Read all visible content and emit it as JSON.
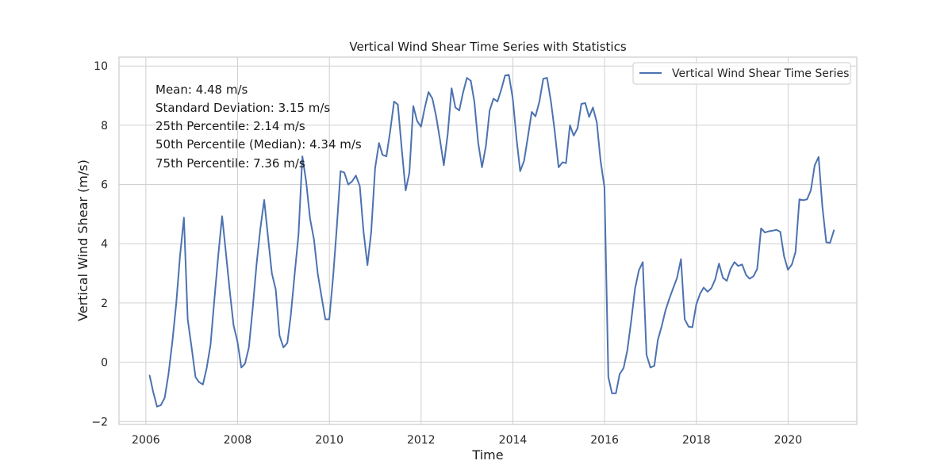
{
  "chart_data": {
    "type": "line",
    "title": "Vertical Wind Shear Time Series with Statistics",
    "xlabel": "Time",
    "ylabel": "Vertical Wind Shear (m/s)",
    "xlim": [
      "2005-06-01",
      "2021-07-01"
    ],
    "ylim": [
      -2.1,
      10.3
    ],
    "x_ticks": [
      "2006",
      "2008",
      "2010",
      "2012",
      "2014",
      "2016",
      "2018",
      "2020"
    ],
    "y_ticks": [
      -2,
      0,
      2,
      4,
      6,
      8,
      10
    ],
    "grid": true,
    "legend_position": "top-right",
    "colors": {
      "series": "#4c72b0",
      "grid": "#d0d0d0",
      "frame": "#cccccc"
    },
    "annotations": [
      "Mean: 4.48 m/s",
      "Standard Deviation: 3.15 m/s",
      "25th Percentile: 2.14 m/s",
      "50th Percentile (Median): 4.34 m/s",
      "75th Percentile: 7.36 m/s"
    ],
    "series": [
      {
        "name": "Vertical Wind Shear Time Series",
        "x": [
          "2006-01-31",
          "2006-02-28",
          "2006-03-31",
          "2006-04-30",
          "2006-05-31",
          "2006-06-30",
          "2006-07-31",
          "2006-08-31",
          "2006-09-30",
          "2006-10-31",
          "2006-11-30",
          "2006-12-31",
          "2007-01-31",
          "2007-02-28",
          "2007-03-31",
          "2007-04-30",
          "2007-05-31",
          "2007-06-30",
          "2007-07-31",
          "2007-08-31",
          "2007-09-30",
          "2007-10-31",
          "2007-11-30",
          "2007-12-31",
          "2008-01-31",
          "2008-02-29",
          "2008-03-31",
          "2008-04-30",
          "2008-05-31",
          "2008-06-30",
          "2008-07-31",
          "2008-08-31",
          "2008-09-30",
          "2008-10-31",
          "2008-11-30",
          "2008-12-31",
          "2009-01-31",
          "2009-02-28",
          "2009-03-31",
          "2009-04-30",
          "2009-05-31",
          "2009-06-30",
          "2009-07-31",
          "2009-08-31",
          "2009-09-30",
          "2009-10-31",
          "2009-11-30",
          "2009-12-31",
          "2010-01-31",
          "2010-02-28",
          "2010-03-31",
          "2010-04-30",
          "2010-05-31",
          "2010-06-30",
          "2010-07-31",
          "2010-08-31",
          "2010-09-30",
          "2010-10-31",
          "2010-11-30",
          "2010-12-31",
          "2011-01-31",
          "2011-02-28",
          "2011-03-31",
          "2011-04-30",
          "2011-05-31",
          "2011-06-30",
          "2011-07-31",
          "2011-08-31",
          "2011-09-30",
          "2011-10-31",
          "2011-11-30",
          "2011-12-31",
          "2012-01-31",
          "2012-02-29",
          "2012-03-31",
          "2012-04-30",
          "2012-05-31",
          "2012-06-30",
          "2012-07-31",
          "2012-08-31",
          "2012-09-30",
          "2012-10-31",
          "2012-11-30",
          "2012-12-31",
          "2013-01-31",
          "2013-02-28",
          "2013-03-31",
          "2013-04-30",
          "2013-05-31",
          "2013-06-30",
          "2013-07-31",
          "2013-08-31",
          "2013-09-30",
          "2013-10-31",
          "2013-11-30",
          "2013-12-31",
          "2014-01-31",
          "2014-02-28",
          "2014-03-31",
          "2014-04-30",
          "2014-05-31",
          "2014-06-30",
          "2014-07-31",
          "2014-08-31",
          "2014-09-30",
          "2014-10-31",
          "2014-11-30",
          "2014-12-31",
          "2015-01-31",
          "2015-02-28",
          "2015-03-31",
          "2015-04-30",
          "2015-05-31",
          "2015-06-30",
          "2015-07-31",
          "2015-08-31",
          "2015-09-30",
          "2015-10-31",
          "2015-11-30",
          "2015-12-31",
          "2016-01-31",
          "2016-02-29",
          "2016-03-31",
          "2016-04-30",
          "2016-05-31",
          "2016-06-30",
          "2016-07-31",
          "2016-08-31",
          "2016-09-30",
          "2016-10-31",
          "2016-11-30",
          "2016-12-31",
          "2017-01-31",
          "2017-02-28",
          "2017-03-31",
          "2017-04-30",
          "2017-05-31",
          "2017-06-30",
          "2017-07-31",
          "2017-08-31",
          "2017-09-30",
          "2017-10-31",
          "2017-11-30",
          "2017-12-31",
          "2018-01-31",
          "2018-02-28",
          "2018-03-31",
          "2018-04-30",
          "2018-05-31",
          "2018-06-30",
          "2018-07-31",
          "2018-08-31",
          "2018-09-30",
          "2018-10-31",
          "2018-11-30",
          "2018-12-31",
          "2019-01-31",
          "2019-02-28",
          "2019-03-31",
          "2019-04-30",
          "2019-05-31",
          "2019-06-30",
          "2019-07-31",
          "2019-08-31",
          "2019-09-30",
          "2019-10-31",
          "2019-11-30",
          "2019-12-31",
          "2020-01-31",
          "2020-02-29",
          "2020-03-31",
          "2020-04-30",
          "2020-05-31",
          "2020-06-30",
          "2020-07-31",
          "2020-08-31",
          "2020-09-30",
          "2020-10-31",
          "2020-11-30",
          "2020-12-31"
        ],
        "values": [
          -0.45,
          -1.0,
          -1.5,
          -1.45,
          -1.2,
          -0.4,
          0.7,
          2.0,
          3.6,
          4.88,
          1.45,
          0.5,
          -0.5,
          -0.67,
          -0.75,
          -0.2,
          0.6,
          2.1,
          3.6,
          4.93,
          3.7,
          2.4,
          1.25,
          0.7,
          -0.18,
          -0.05,
          0.5,
          1.8,
          3.3,
          4.5,
          5.48,
          4.2,
          3.0,
          2.45,
          0.9,
          0.5,
          0.65,
          1.6,
          3.0,
          4.3,
          6.95,
          6.1,
          4.85,
          4.15,
          3.0,
          2.2,
          1.45,
          1.45,
          2.9,
          4.5,
          6.45,
          6.4,
          6.0,
          6.1,
          6.3,
          5.95,
          4.4,
          3.28,
          4.4,
          6.55,
          7.4,
          7.0,
          6.95,
          7.8,
          8.8,
          8.7,
          7.2,
          5.8,
          6.4,
          8.65,
          8.15,
          7.95,
          8.6,
          9.12,
          8.9,
          8.3,
          7.5,
          6.65,
          7.7,
          9.25,
          8.6,
          8.5,
          9.1,
          9.6,
          9.5,
          8.8,
          7.4,
          6.58,
          7.3,
          8.5,
          8.9,
          8.8,
          9.2,
          9.68,
          9.7,
          8.9,
          7.5,
          6.45,
          6.8,
          7.6,
          8.45,
          8.3,
          8.8,
          9.57,
          9.6,
          8.8,
          7.8,
          6.58,
          6.75,
          6.72,
          8.0,
          7.65,
          7.9,
          8.72,
          8.75,
          8.28,
          8.6,
          8.1,
          6.8,
          5.9,
          -0.5,
          -1.05,
          -1.05,
          -0.4,
          -0.2,
          0.4,
          1.4,
          2.5,
          3.1,
          3.38,
          0.25,
          -0.18,
          -0.12,
          0.75,
          1.22,
          1.75,
          2.15,
          2.5,
          2.85,
          3.48,
          1.45,
          1.2,
          1.18,
          1.95,
          2.32,
          2.52,
          2.38,
          2.5,
          2.8,
          3.33,
          2.85,
          2.75,
          3.15,
          3.38,
          3.25,
          3.3,
          2.95,
          2.82,
          2.9,
          3.15,
          4.52,
          4.38,
          4.42,
          4.44,
          4.47,
          4.4,
          3.58,
          3.12,
          3.3,
          3.72,
          5.5,
          5.47,
          5.5,
          5.8,
          6.65,
          6.93,
          5.25,
          4.05,
          4.03,
          4.45
        ]
      }
    ]
  }
}
